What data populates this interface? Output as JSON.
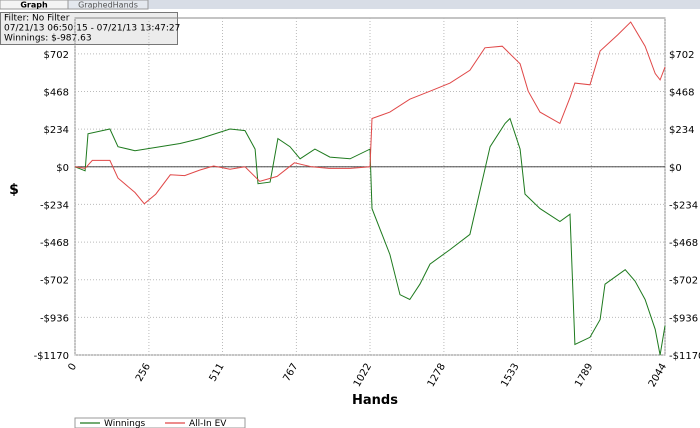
{
  "tabs": [
    "Graph",
    "GraphedHands"
  ],
  "filter_box": {
    "filter": "Filter: No Filter",
    "range": "07/21/13 06:50:15 - 07/21/13 13:47:27",
    "winnings": "Winnings: $-987.63"
  },
  "chart_data": {
    "type": "line",
    "x_label": "Hands",
    "y_label": "$",
    "xlim": [
      0,
      2044
    ],
    "xticks": [
      0,
      256,
      511,
      767,
      1022,
      1278,
      1533,
      1789,
      2044
    ],
    "ylim": [
      -1170,
      925
    ],
    "yticks": [
      {
        "value": -1170,
        "label": "-$1170"
      },
      {
        "value": -936,
        "label": "-$936"
      },
      {
        "value": -702,
        "label": "-$702"
      },
      {
        "value": -468,
        "label": "-$468"
      },
      {
        "value": -234,
        "label": "-$234"
      },
      {
        "value": 0,
        "label": "$0"
      },
      {
        "value": 234,
        "label": "$234"
      },
      {
        "value": 468,
        "label": "$468"
      },
      {
        "value": 702,
        "label": "$702"
      }
    ],
    "grid": true,
    "series": [
      {
        "name": "Winnings",
        "color": "#1e7a1e",
        "x": [
          0,
          35,
          45,
          121,
          149,
          208,
          294,
          364,
          433,
          537,
          589,
          624,
          634,
          676,
          703,
          745,
          780,
          831,
          883,
          953,
          1022,
          1029,
          1091,
          1126,
          1160,
          1195,
          1230,
          1299,
          1368,
          1438,
          1490,
          1507,
          1542,
          1559,
          1611,
          1680,
          1715,
          1732,
          1784,
          1819,
          1836,
          1906,
          1940,
          1975,
          2010,
          2027,
          2044
        ],
        "values": [
          0,
          -25,
          205,
          235,
          125,
          100,
          125,
          145,
          175,
          235,
          225,
          110,
          -105,
          -95,
          175,
          125,
          50,
          110,
          60,
          50,
          110,
          -260,
          -545,
          -795,
          -825,
          -730,
          -605,
          -515,
          -420,
          125,
          270,
          300,
          110,
          -170,
          -260,
          -340,
          -295,
          -1105,
          -1060,
          -950,
          -730,
          -640,
          -710,
          -825,
          -1010,
          -1170,
          -988
        ]
      },
      {
        "name": "All-In EV",
        "color": "#e04848",
        "x": [
          0,
          35,
          60,
          121,
          149,
          208,
          240,
          280,
          330,
          380,
          433,
          480,
          537,
          589,
          640,
          700,
          760,
          820,
          880,
          953,
          1022,
          1029,
          1091,
          1160,
          1230,
          1299,
          1368,
          1420,
          1480,
          1542,
          1570,
          1611,
          1680,
          1715,
          1732,
          1784,
          1819,
          1880,
          1925,
          1975,
          2010,
          2027,
          2044
        ],
        "values": [
          0,
          -10,
          40,
          40,
          -70,
          -160,
          -230,
          -170,
          -50,
          -55,
          -20,
          5,
          -15,
          0,
          -90,
          -60,
          25,
          0,
          -10,
          -10,
          0,
          300,
          340,
          420,
          470,
          520,
          600,
          740,
          750,
          640,
          470,
          340,
          270,
          430,
          520,
          510,
          720,
          820,
          900,
          750,
          580,
          540,
          620
        ]
      }
    ]
  }
}
